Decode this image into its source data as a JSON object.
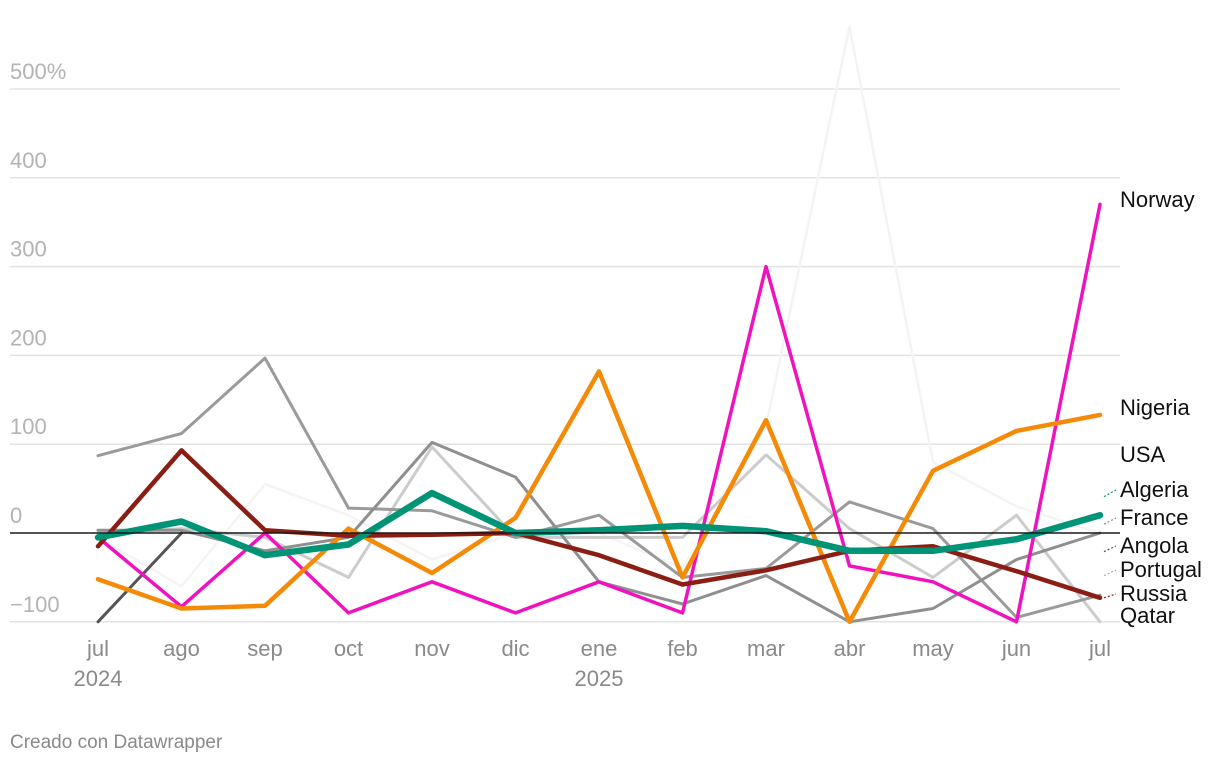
{
  "chart_data": {
    "type": "line",
    "x": [
      "jul",
      "ago",
      "sep",
      "oct",
      "nov",
      "dic",
      "ene",
      "feb",
      "mar",
      "abr",
      "may",
      "jun",
      "jul"
    ],
    "x_year_labels": [
      {
        "index": 0,
        "label": "2024"
      },
      {
        "index": 6,
        "label": "2025"
      }
    ],
    "y_ticks": [
      {
        "value": 500,
        "label": "500%"
      },
      {
        "value": 400,
        "label": "400"
      },
      {
        "value": 300,
        "label": "300"
      },
      {
        "value": 200,
        "label": "200"
      },
      {
        "value": 100,
        "label": "100"
      },
      {
        "value": 0,
        "label": "0"
      },
      {
        "value": -100,
        "label": "−100"
      }
    ],
    "ylim": [
      -100,
      580
    ],
    "grid": true,
    "series": [
      {
        "name": "",
        "color": "#f4f4f4",
        "width": 2.5,
        "labeled": false,
        "values": [
          -5,
          -60,
          55,
          20,
          -30,
          0,
          0,
          -40,
          120,
          570,
          80,
          30,
          0
        ]
      },
      {
        "name": "",
        "color": "#cccccc",
        "width": 3,
        "labeled": false,
        "values": [
          0,
          5,
          -5,
          -50,
          97,
          -5,
          -5,
          -5,
          88,
          5,
          -50,
          20,
          -100
        ]
      },
      {
        "name": "",
        "color": "#9a9a9a",
        "width": 3,
        "labeled": false,
        "values": [
          87,
          112,
          197,
          28,
          25,
          -5,
          20,
          -50,
          -40,
          35,
          5,
          -95,
          -70
        ]
      },
      {
        "name": "",
        "color": "#8f8f8f",
        "width": 3,
        "labeled": false,
        "values": [
          3,
          3,
          -20,
          -5,
          102,
          63,
          -55,
          -80,
          -48,
          -100,
          -85,
          -30,
          0
        ]
      },
      {
        "name": "",
        "color": "#555555",
        "width": 3,
        "labeled": false,
        "values": [
          -100,
          0,
          null,
          null,
          null,
          null,
          null,
          null,
          null,
          null,
          null,
          null,
          null
        ]
      },
      {
        "name": "Norway",
        "color": "#f012be",
        "width": 3.5,
        "labeled": true,
        "values": [
          -5,
          -83,
          0,
          -90,
          -55,
          -90,
          -55,
          -90,
          300,
          -37,
          -55,
          -100,
          370
        ]
      },
      {
        "name": "Nigeria",
        "color": "#f58a07",
        "width": 4.5,
        "labeled": true,
        "values": [
          -52,
          -85,
          -82,
          5,
          -45,
          17,
          182,
          -50,
          127,
          -100,
          70,
          115,
          133
        ]
      },
      {
        "name": "Russia",
        "color": "#8b1e14",
        "width": 4.5,
        "labeled": true,
        "values": [
          -15,
          93,
          3,
          -3,
          -2,
          0,
          -25,
          -58,
          -42,
          -20,
          -15,
          -43,
          -73
        ]
      },
      {
        "name": "Algeria",
        "color": "#009477",
        "width": 6.5,
        "labeled": true,
        "values": [
          -5,
          13,
          -25,
          -13,
          45,
          0,
          3,
          8,
          2,
          -20,
          -20,
          -7,
          20
        ]
      }
    ],
    "end_labels": [
      {
        "text": "Norway",
        "y": 370,
        "connector_color": ""
      },
      {
        "text": "Nigeria",
        "y": 133,
        "connector_color": ""
      },
      {
        "text": "USA",
        "y": 80,
        "connector_color": ""
      },
      {
        "text": "Algeria",
        "y": 41,
        "connector_color": "#009477"
      },
      {
        "text": "France",
        "y": 10,
        "connector_color": "#888888"
      },
      {
        "text": "Angola",
        "y": -21,
        "connector_color": "#555555"
      },
      {
        "text": "Portugal",
        "y": -48,
        "connector_color": "#aaaaaa"
      },
      {
        "text": "Russia",
        "y": -73,
        "connector_color": "#8b1e14"
      },
      {
        "text": "Qatar",
        "y": -98,
        "connector_color": ""
      }
    ]
  },
  "footer": {
    "credit": "Creado con Datawrapper"
  }
}
